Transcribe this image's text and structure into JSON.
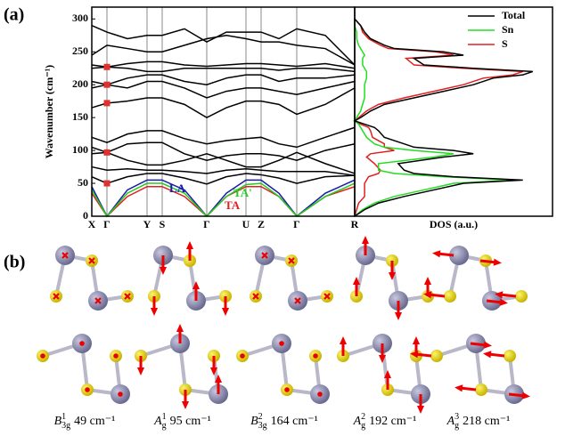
{
  "panel_a_label": "(a)",
  "panel_b_label": "(b)",
  "chart_data": [
    {
      "type": "line",
      "ylabel": "Wavenumber (cm⁻¹)",
      "x": [
        0,
        17,
        40,
        62,
        79,
        104,
        129,
        151,
        173,
        190,
        210,
        230,
        262,
        295
      ],
      "xlim": [
        0,
        295
      ],
      "xticks": [
        {
          "value": 0,
          "label": "X"
        },
        {
          "value": 17,
          "label": "Γ"
        },
        {
          "value": 62,
          "label": "Y"
        },
        {
          "value": 79,
          "label": "S"
        },
        {
          "value": 129,
          "label": "Γ"
        },
        {
          "value": 173,
          "label": "U"
        },
        {
          "value": 190,
          "label": "Z"
        },
        {
          "value": 230,
          "label": "Γ"
        },
        {
          "value": 295,
          "label": "R"
        }
      ],
      "ylim": [
        0,
        318
      ],
      "yticks": [
        0,
        50,
        100,
        150,
        200,
        250,
        300
      ],
      "series": [
        {
          "name": "LA",
          "color": "#1a1aa8",
          "values": [
            45,
            0,
            40,
            55,
            55,
            40,
            0,
            35,
            55,
            55,
            35,
            0,
            35,
            55
          ]
        },
        {
          "name": "TA",
          "color": "#e02020",
          "values": [
            35,
            0,
            30,
            45,
            45,
            30,
            0,
            30,
            45,
            45,
            30,
            0,
            30,
            45
          ]
        },
        {
          "name": "TA'",
          "color": "#22cc22",
          "values": [
            40,
            0,
            35,
            50,
            50,
            35,
            0,
            30,
            48,
            50,
            30,
            0,
            30,
            50
          ]
        },
        {
          "color": "#000000",
          "values": [
            60,
            50,
            60,
            65,
            65,
            58,
            49,
            60,
            65,
            63,
            58,
            50,
            60,
            62
          ]
        },
        {
          "color": "#000000",
          "values": [
            75,
            70,
            72,
            70,
            70,
            68,
            65,
            70,
            72,
            70,
            68,
            68,
            68,
            62
          ]
        },
        {
          "color": "#000000",
          "values": [
            95,
            97,
            85,
            78,
            78,
            85,
            95,
            85,
            75,
            75,
            85,
            97,
            80,
            65
          ]
        },
        {
          "color": "#000000",
          "values": [
            105,
            97,
            110,
            112,
            112,
            95,
            85,
            92,
            95,
            95,
            92,
            85,
            100,
            110
          ]
        },
        {
          "color": "#000000",
          "values": [
            120,
            112,
            125,
            130,
            130,
            118,
            110,
            115,
            118,
            120,
            110,
            105,
            120,
            135
          ]
        },
        {
          "color": "#000000",
          "values": [
            165,
            172,
            175,
            180,
            180,
            170,
            150,
            165,
            175,
            175,
            170,
            155,
            170,
            195
          ]
        },
        {
          "color": "#000000",
          "values": [
            195,
            200,
            195,
            205,
            205,
            195,
            180,
            190,
            195,
            195,
            190,
            185,
            195,
            205
          ]
        },
        {
          "color": "#000000",
          "values": [
            205,
            200,
            210,
            215,
            215,
            205,
            200,
            210,
            215,
            215,
            205,
            210,
            210,
            215
          ]
        },
        {
          "color": "#000000",
          "values": [
            225,
            227,
            225,
            220,
            220,
            225,
            225,
            225,
            225,
            225,
            222,
            225,
            225,
            220
          ]
        },
        {
          "color": "#000000",
          "values": [
            230,
            227,
            232,
            235,
            235,
            230,
            228,
            230,
            232,
            232,
            230,
            228,
            232,
            225
          ]
        },
        {
          "color": "#000000",
          "values": [
            245,
            260,
            255,
            250,
            250,
            260,
            270,
            275,
            270,
            265,
            265,
            260,
            255,
            230
          ]
        },
        {
          "color": "#000000",
          "values": [
            290,
            280,
            270,
            275,
            275,
            285,
            265,
            280,
            280,
            280,
            270,
            285,
            275,
            230
          ]
        }
      ],
      "markers": {
        "color": "#e03030",
        "x": [
          17,
          17,
          17,
          17,
          17
        ],
        "values": [
          50,
          97,
          172,
          200,
          227
        ]
      }
    },
    {
      "type": "line",
      "xlabel": "DOS (a.u.)",
      "xlim": [
        0,
        1
      ],
      "ylim": [
        0,
        318
      ],
      "legend": "top-right",
      "y": [
        0,
        10,
        20,
        30,
        40,
        50,
        55,
        60,
        65,
        70,
        80,
        90,
        95,
        100,
        105,
        110,
        120,
        130,
        135,
        140,
        145,
        150,
        160,
        170,
        180,
        190,
        200,
        210,
        215,
        220,
        225,
        230,
        240,
        245,
        250,
        255,
        260,
        270,
        280,
        290,
        300
      ],
      "series": [
        {
          "name": "Total",
          "color": "#000000",
          "values": [
            0,
            0.05,
            0.12,
            0.25,
            0.4,
            0.55,
            0.85,
            0.5,
            0.3,
            0.25,
            0.22,
            0.45,
            0.6,
            0.5,
            0.3,
            0.25,
            0.15,
            0.12,
            0.1,
            0.05,
            0,
            0.03,
            0.08,
            0.15,
            0.3,
            0.45,
            0.6,
            0.7,
            0.85,
            0.9,
            0.6,
            0.35,
            0.3,
            0.55,
            0.45,
            0.2,
            0.15,
            0.08,
            0.05,
            0.03,
            0
          ]
        },
        {
          "name": "Sn",
          "color": "#22dd22",
          "values": [
            0,
            0.04,
            0.1,
            0.2,
            0.35,
            0.5,
            0.8,
            0.45,
            0.2,
            0.12,
            0.12,
            0.4,
            0.5,
            0.3,
            0.15,
            0.1,
            0.06,
            0.04,
            0.03,
            0.02,
            0,
            0.01,
            0.03,
            0.04,
            0.05,
            0.05,
            0.05,
            0.06,
            0.06,
            0.06,
            0.05,
            0.04,
            0.04,
            0.05,
            0.04,
            0.03,
            0.02,
            0.01,
            0.01,
            0,
            0
          ]
        },
        {
          "name": "S",
          "color": "#e02020",
          "values": [
            0,
            0.01,
            0.02,
            0.05,
            0.05,
            0.05,
            0.06,
            0.07,
            0.12,
            0.13,
            0.1,
            0.06,
            0.08,
            0.2,
            0.15,
            0.15,
            0.09,
            0.08,
            0.07,
            0.03,
            0,
            0.02,
            0.06,
            0.12,
            0.25,
            0.4,
            0.55,
            0.65,
            0.8,
            0.85,
            0.55,
            0.3,
            0.26,
            0.5,
            0.41,
            0.17,
            0.13,
            0.07,
            0.04,
            0.03,
            0
          ]
        }
      ]
    }
  ],
  "modes": [
    {
      "symbol": "B",
      "sub": "3g",
      "sup": "1",
      "frequency": "49 cm⁻¹"
    },
    {
      "symbol": "A",
      "sub": "g",
      "sup": "1",
      "frequency": "95 cm⁻¹"
    },
    {
      "symbol": "B",
      "sub": "3g",
      "sup": "2",
      "frequency": "164 cm⁻¹"
    },
    {
      "symbol": "A",
      "sub": "g",
      "sup": "2",
      "frequency": "192 cm⁻¹"
    },
    {
      "symbol": "A",
      "sub": "g",
      "sup": "3",
      "frequency": "218 cm⁻¹"
    }
  ]
}
